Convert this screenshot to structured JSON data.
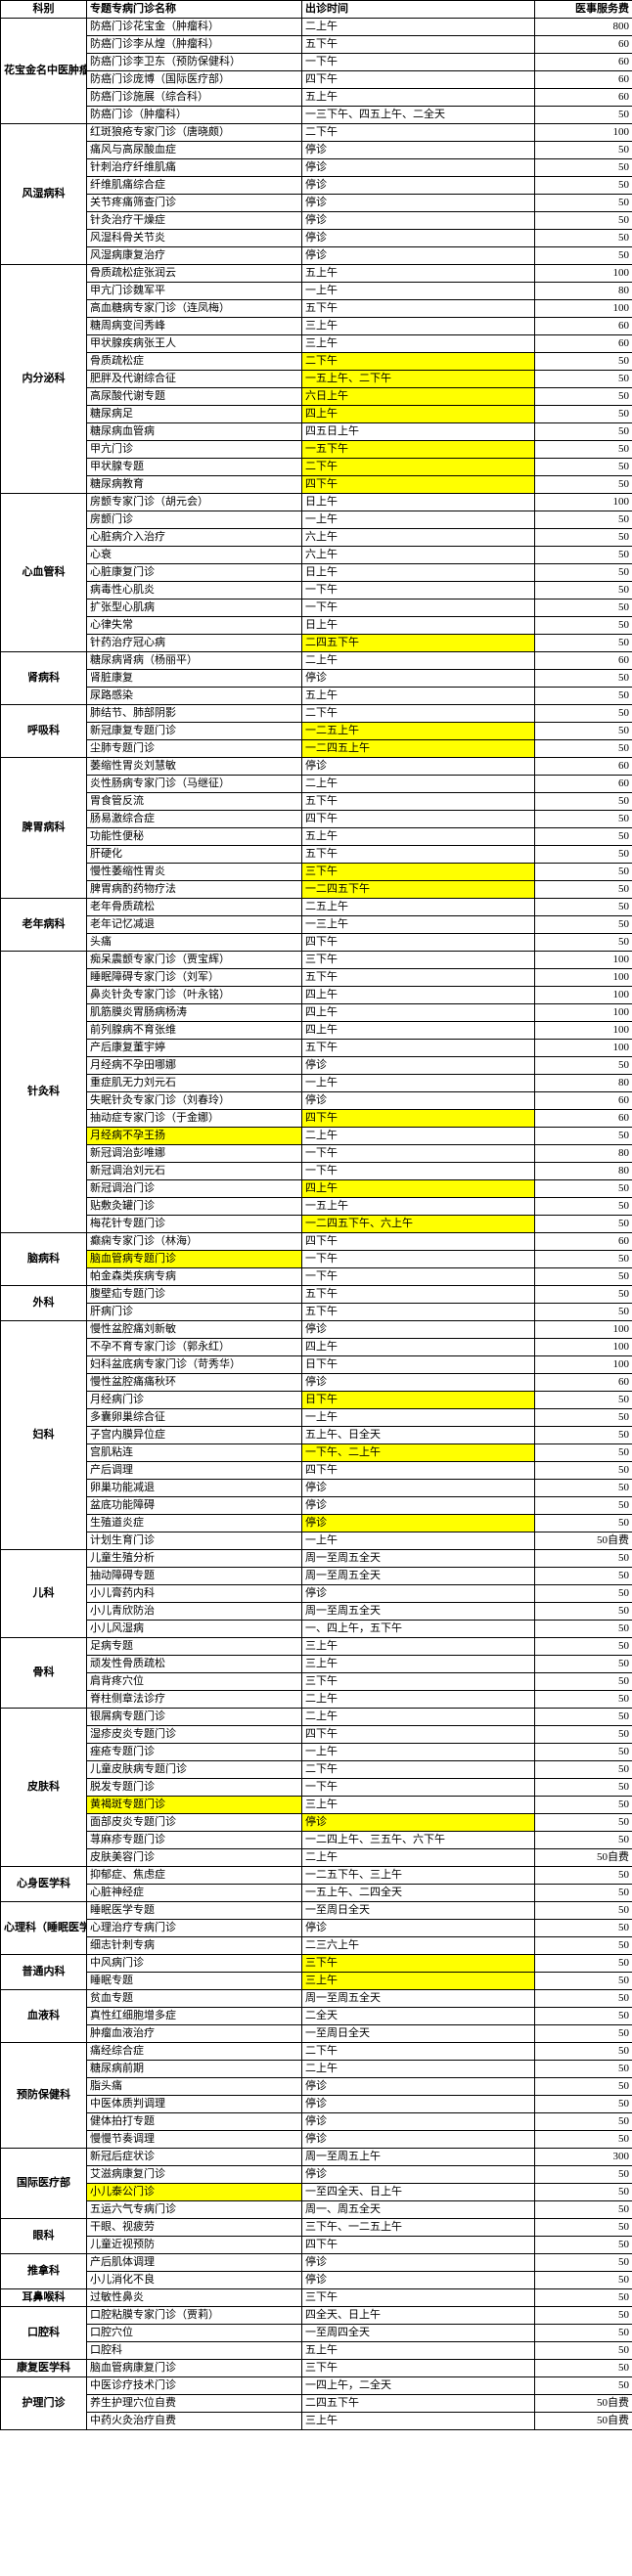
{
  "headers": [
    "科别",
    "专题专病门诊名称",
    "出诊时间",
    "医事服务费"
  ],
  "columns": [
    "dept",
    "name",
    "time",
    "fee"
  ],
  "highlight_color": "#ffff00",
  "rows": [
    {
      "dept": "花宝金名中医肿瘤预防团队",
      "name": "防癌门诊花宝金（肿瘤科）",
      "time": "二上午",
      "fee": "800"
    },
    {
      "dept": "",
      "name": "防癌门诊李从煌（肿瘤科）",
      "time": "五下午",
      "fee": "60"
    },
    {
      "dept": "",
      "name": "防癌门诊李卫东（预防保健科）",
      "time": "一下午",
      "fee": "60"
    },
    {
      "dept": "",
      "name": "防癌门诊庞博（国际医疗部）",
      "time": "四下午",
      "fee": "60"
    },
    {
      "dept": "",
      "name": "防癌门诊施展（综合科）",
      "time": "五上午",
      "fee": "60"
    },
    {
      "dept": "",
      "name": "防癌门诊（肿瘤科）",
      "time": "一三下午、四五上午、二全天",
      "fee": "50"
    },
    {
      "dept": "风湿病科",
      "name": "红斑狼疮专家门诊（唐晓颇）",
      "time": "二下午",
      "fee": "100"
    },
    {
      "dept": "",
      "name": "痛风与高尿酸血症",
      "time": "停诊",
      "fee": "50"
    },
    {
      "dept": "",
      "name": "针刺治疗纤维肌痛",
      "time": "停诊",
      "fee": "50"
    },
    {
      "dept": "",
      "name": "纤维肌痛综合症",
      "time": "停诊",
      "fee": "50"
    },
    {
      "dept": "",
      "name": "关节疼痛筛查门诊",
      "time": "停诊",
      "fee": "50"
    },
    {
      "dept": "",
      "name": "针灸治疗干燥症",
      "time": "停诊",
      "fee": "50"
    },
    {
      "dept": "",
      "name": "风湿科骨关节炎",
      "time": "停诊",
      "fee": "50"
    },
    {
      "dept": "",
      "name": "风湿病康复治疗",
      "time": "停诊",
      "fee": "50"
    },
    {
      "dept": "内分泌科",
      "name": "骨质疏松症张润云",
      "time": "五上午",
      "fee": "100"
    },
    {
      "dept": "",
      "name": "甲亢门诊魏军平",
      "time": "一上午",
      "fee": "80"
    },
    {
      "dept": "",
      "name": "高血糖病专家门诊（连凤梅）",
      "time": "五下午",
      "fee": "100"
    },
    {
      "dept": "",
      "name": "糖周病变闫秀峰",
      "time": "三上午",
      "fee": "60"
    },
    {
      "dept": "",
      "name": "甲状腺疾病张王人",
      "time": "三上午",
      "fee": "60"
    },
    {
      "dept": "",
      "name": "骨质疏松症",
      "time": "二下午",
      "fee": "50",
      "hl": [
        "time"
      ]
    },
    {
      "dept": "",
      "name": "肥胖及代谢综合征",
      "time": "一五上午、二下午",
      "fee": "50",
      "hl": [
        "time"
      ]
    },
    {
      "dept": "",
      "name": "高尿酸代谢专题",
      "time": "六日上午",
      "fee": "50",
      "hl": [
        "time"
      ]
    },
    {
      "dept": "",
      "name": "糖尿病足",
      "time": "四上午",
      "fee": "50",
      "hl": [
        "time"
      ]
    },
    {
      "dept": "",
      "name": "糖尿病血管病",
      "time": "四五日上午",
      "fee": "50"
    },
    {
      "dept": "",
      "name": "甲亢门诊",
      "time": "一五下午",
      "fee": "50",
      "hl": [
        "time"
      ]
    },
    {
      "dept": "",
      "name": "甲状腺专题",
      "time": "二下午",
      "fee": "50",
      "hl": [
        "time"
      ]
    },
    {
      "dept": "",
      "name": "糖尿病教育",
      "time": "四下午",
      "fee": "50",
      "hl": [
        "time"
      ]
    },
    {
      "dept": "心血管科",
      "name": "房颤专家门诊（胡元会）",
      "time": "日上午",
      "fee": "100"
    },
    {
      "dept": "",
      "name": "房颤门诊",
      "time": "一上午",
      "fee": "50"
    },
    {
      "dept": "",
      "name": "心脏病介入治疗",
      "time": "六上午",
      "fee": "50"
    },
    {
      "dept": "",
      "name": "心衰",
      "time": "六上午",
      "fee": "50"
    },
    {
      "dept": "",
      "name": "心脏康复门诊",
      "time": "日上午",
      "fee": "50"
    },
    {
      "dept": "",
      "name": "病毒性心肌炎",
      "time": "一下午",
      "fee": "50"
    },
    {
      "dept": "",
      "name": "扩张型心肌病",
      "time": "一下午",
      "fee": "50"
    },
    {
      "dept": "",
      "name": "心律失常",
      "time": "日上午",
      "fee": "50"
    },
    {
      "dept": "",
      "name": "针药治疗冠心病",
      "time": "二四五下午",
      "fee": "50",
      "hl": [
        "time"
      ]
    },
    {
      "dept": "肾病科",
      "name": "糖尿病肾病（杨丽平）",
      "time": "二上午",
      "fee": "60"
    },
    {
      "dept": "",
      "name": "肾脏康复",
      "time": "停诊",
      "fee": "50"
    },
    {
      "dept": "",
      "name": "尿路感染",
      "time": "五上午",
      "fee": "50"
    },
    {
      "dept": "呼吸科",
      "name": "肺结节、肺部阴影",
      "time": "二下午",
      "fee": "50"
    },
    {
      "dept": "",
      "name": "新冠康复专题门诊",
      "time": "一二五上午",
      "fee": "50",
      "hl": [
        "time"
      ]
    },
    {
      "dept": "",
      "name": "尘肺专题门诊",
      "time": "一二四五上午",
      "fee": "50",
      "hl": [
        "time"
      ]
    },
    {
      "dept": "脾胃病科",
      "name": "萎缩性胃炎刘慧敏",
      "time": "停诊",
      "fee": "60"
    },
    {
      "dept": "",
      "name": "炎性肠病专家门诊（马继征）",
      "time": "二上午",
      "fee": "60"
    },
    {
      "dept": "",
      "name": "胃食管反流",
      "time": "五下午",
      "fee": "50"
    },
    {
      "dept": "",
      "name": "肠易激综合症",
      "time": "四下午",
      "fee": "50"
    },
    {
      "dept": "",
      "name": "功能性便秘",
      "time": "五上午",
      "fee": "50"
    },
    {
      "dept": "",
      "name": "肝硬化",
      "time": "五下午",
      "fee": "50"
    },
    {
      "dept": "",
      "name": "慢性萎缩性胃炎",
      "time": "三下午",
      "fee": "50",
      "hl": [
        "time"
      ]
    },
    {
      "dept": "",
      "name": "脾胃病酌药物疗法",
      "time": "一二四五下午",
      "fee": "50",
      "hl": [
        "time"
      ]
    },
    {
      "dept": "老年病科",
      "name": "老年骨质疏松",
      "time": "二五上午",
      "fee": "50"
    },
    {
      "dept": "",
      "name": "老年记忆减退",
      "time": "一三上午",
      "fee": "50"
    },
    {
      "dept": "",
      "name": "头痛",
      "time": "四下午",
      "fee": "50"
    },
    {
      "dept": "针灸科",
      "name": "痴呆震颤专家门诊（贾宝辉）",
      "time": "三下午",
      "fee": "100"
    },
    {
      "dept": "",
      "name": "睡眠障碍专家门诊（刘军）",
      "time": "五下午",
      "fee": "100"
    },
    {
      "dept": "",
      "name": "鼻炎针灸专家门诊（叶永铭）",
      "time": "四上午",
      "fee": "100"
    },
    {
      "dept": "",
      "name": "肌筋膜炎胃肠病杨涛",
      "time": "四上午",
      "fee": "100"
    },
    {
      "dept": "",
      "name": "前列腺病不育张维",
      "time": "四上午",
      "fee": "100"
    },
    {
      "dept": "",
      "name": "产后康复董宇婷",
      "time": "五下午",
      "fee": "100"
    },
    {
      "dept": "",
      "name": "月经病不孕田哪娜",
      "time": "停诊",
      "fee": "50"
    },
    {
      "dept": "",
      "name": "重症肌无力刘元石",
      "time": "一上午",
      "fee": "80"
    },
    {
      "dept": "",
      "name": "失眠针灸专家门诊（刘春玲）",
      "time": "停诊",
      "fee": "60"
    },
    {
      "dept": "",
      "name": "抽动症专家门诊（于金娜）",
      "time": "四下午",
      "fee": "60",
      "hl": [
        "time"
      ]
    },
    {
      "dept": "",
      "name": "月经病不孕王扬",
      "time": "二上午",
      "fee": "50",
      "hl": [
        "name"
      ]
    },
    {
      "dept": "",
      "name": "新冠调治彭唯娜",
      "time": "一下午",
      "fee": "80"
    },
    {
      "dept": "",
      "name": "新冠调治刘元石",
      "time": "一下午",
      "fee": "80"
    },
    {
      "dept": "",
      "name": "新冠调治门诊",
      "time": "四上午",
      "fee": "50",
      "hl": [
        "time"
      ]
    },
    {
      "dept": "",
      "name": "贴敷灸罐门诊",
      "time": "一五上午",
      "fee": "50"
    },
    {
      "dept": "",
      "name": "梅花针专题门诊",
      "time": "一二四五下午、六上午",
      "fee": "50",
      "hl": [
        "time"
      ]
    },
    {
      "dept": "脑病科",
      "name": "癫痫专家门诊（林海）",
      "time": "四下午",
      "fee": "60"
    },
    {
      "dept": "",
      "name": "脑血管病专题门诊",
      "time": "一下午",
      "fee": "50",
      "hl": [
        "name"
      ]
    },
    {
      "dept": "",
      "name": "帕金森类疾病专病",
      "time": "一下午",
      "fee": "50"
    },
    {
      "dept": "外科",
      "name": "腹壁疝专题门诊",
      "time": "五下午",
      "fee": "50"
    },
    {
      "dept": "",
      "name": "肝病门诊",
      "time": "五下午",
      "fee": "50"
    },
    {
      "dept": "妇科",
      "name": "慢性盆腔痛刘新敏",
      "time": "停诊",
      "fee": "100"
    },
    {
      "dept": "",
      "name": "不孕不育专家门诊（郭永红）",
      "time": "四上午",
      "fee": "100"
    },
    {
      "dept": "",
      "name": "妇科盆底病专家门诊（苛秀华）",
      "time": "日下午",
      "fee": "100"
    },
    {
      "dept": "",
      "name": "慢性盆腔痛痛秋环",
      "time": "停诊",
      "fee": "60"
    },
    {
      "dept": "",
      "name": "月经病门诊",
      "time": "日下午",
      "fee": "50",
      "hl": [
        "time"
      ]
    },
    {
      "dept": "",
      "name": "多囊卵巢综合征",
      "time": "一上午",
      "fee": "50"
    },
    {
      "dept": "",
      "name": "子宫内膜异位症",
      "time": "五上午、日全天",
      "fee": "50"
    },
    {
      "dept": "",
      "name": "宫肌粘连",
      "time": "一下午、二上午",
      "fee": "50",
      "hl": [
        "time"
      ]
    },
    {
      "dept": "",
      "name": "产后调理",
      "time": "四下午",
      "fee": "50"
    },
    {
      "dept": "",
      "name": "卵巢功能减退",
      "time": "停诊",
      "fee": "50"
    },
    {
      "dept": "",
      "name": "盆底功能障碍",
      "time": "停诊",
      "fee": "50"
    },
    {
      "dept": "",
      "name": "生殖道炎症",
      "time": "停诊",
      "fee": "50",
      "hl": [
        "time"
      ]
    },
    {
      "dept": "",
      "name": "计划生育门诊",
      "time": "一上午",
      "fee": "50自费"
    },
    {
      "dept": "儿科",
      "name": "儿童生殖分析",
      "time": "周一至周五全天",
      "fee": "50"
    },
    {
      "dept": "",
      "name": "抽动障碍专题",
      "time": "周一至周五全天",
      "fee": "50"
    },
    {
      "dept": "",
      "name": "小儿膏药内科",
      "time": "停诊",
      "fee": "50"
    },
    {
      "dept": "",
      "name": "小儿青欣防治",
      "time": "周一至周五全天",
      "fee": "50"
    },
    {
      "dept": "",
      "name": "小儿风湿病",
      "time": "一、四上午，五下午",
      "fee": "50"
    },
    {
      "dept": "骨科",
      "name": "足病专题",
      "time": "三上午",
      "fee": "50"
    },
    {
      "dept": "",
      "name": "顽发性骨质疏松",
      "time": "三上午",
      "fee": "50"
    },
    {
      "dept": "",
      "name": "肩背疼穴位",
      "time": "三下午",
      "fee": "50"
    },
    {
      "dept": "",
      "name": "脊柱侧章法诊疗",
      "time": "二上午",
      "fee": "50"
    },
    {
      "dept": "皮肤科",
      "name": "银屑病专题门诊",
      "time": "二上午",
      "fee": "50"
    },
    {
      "dept": "",
      "name": "湿疹皮炎专题门诊",
      "time": "四下午",
      "fee": "50"
    },
    {
      "dept": "",
      "name": "痤疮专题门诊",
      "time": "一上午",
      "fee": "50"
    },
    {
      "dept": "",
      "name": "儿童皮肤病专题门诊",
      "time": "二下午",
      "fee": "50"
    },
    {
      "dept": "",
      "name": "脱发专题门诊",
      "time": "一下午",
      "fee": "50"
    },
    {
      "dept": "",
      "name": "黄褐斑专题门诊",
      "time": "三上午",
      "fee": "50",
      "hl": [
        "name"
      ]
    },
    {
      "dept": "",
      "name": "面部皮炎专题门诊",
      "time": "停诊",
      "fee": "50",
      "hl": [
        "time"
      ]
    },
    {
      "dept": "",
      "name": "荨麻疹专题门诊",
      "time": "一二四上午、三五午、六下午",
      "fee": "50"
    },
    {
      "dept": "",
      "name": "皮肤美容门诊",
      "time": "二上午",
      "fee": "50自费"
    },
    {
      "dept": "心身医学科",
      "name": "抑郁症、焦虑症",
      "time": "一二五下午、三上午",
      "fee": "50"
    },
    {
      "dept": "",
      "name": "心脏神经症",
      "time": "一五上午、二四全天",
      "fee": "50"
    },
    {
      "dept": "心理科（睡眠医学门诊）",
      "name": "睡眠医学专题",
      "time": "一至周日全天",
      "fee": "50"
    },
    {
      "dept": "",
      "name": "心理治疗专病门诊",
      "time": "停诊",
      "fee": "50"
    },
    {
      "dept": "",
      "name": "细志针刺专病",
      "time": "二三六上午",
      "fee": "50"
    },
    {
      "dept": "普通内科",
      "name": "中风病门诊",
      "time": "三下午",
      "fee": "50",
      "hl": [
        "time"
      ]
    },
    {
      "dept": "",
      "name": "睡眠专题",
      "time": "三上午",
      "fee": "50",
      "hl": [
        "time"
      ]
    },
    {
      "dept": "血液科",
      "name": "贫血专题",
      "time": "周一至周五全天",
      "fee": "50"
    },
    {
      "dept": "",
      "name": "真性红细胞增多症",
      "time": "二全天",
      "fee": "50"
    },
    {
      "dept": "",
      "name": "肿瘤血液治疗",
      "time": "一至周日全天",
      "fee": "50"
    },
    {
      "dept": "预防保健科",
      "name": "痛经综合症",
      "time": "二下午",
      "fee": "50"
    },
    {
      "dept": "",
      "name": "糖尿病前期",
      "time": "二上午",
      "fee": "50"
    },
    {
      "dept": "",
      "name": "脂头痛",
      "time": "停诊",
      "fee": "50"
    },
    {
      "dept": "",
      "name": "中医体质判调理",
      "time": "停诊",
      "fee": "50"
    },
    {
      "dept": "",
      "name": "健体拍打专题",
      "time": "停诊",
      "fee": "50"
    },
    {
      "dept": "",
      "name": "慢慢节奏调理",
      "time": "停诊",
      "fee": "50"
    },
    {
      "dept": "国际医疗部",
      "name": "新冠后症状诊",
      "time": "周一至周五上午",
      "fee": "300"
    },
    {
      "dept": "",
      "name": "艾滋病康复门诊",
      "time": "停诊",
      "fee": "50"
    },
    {
      "dept": "",
      "name": "小儿泰公门诊",
      "time": "一至四全天、日上午",
      "fee": "50",
      "hl": [
        "name"
      ]
    },
    {
      "dept": "",
      "name": "五运六气专病门诊",
      "time": "周一、周五全天",
      "fee": "50"
    },
    {
      "dept": "眼科",
      "name": "干眼、视疲劳",
      "time": "三下午、一二五上午",
      "fee": "50"
    },
    {
      "dept": "",
      "name": "儿童近视预防",
      "time": "四下午",
      "fee": "50"
    },
    {
      "dept": "推拿科",
      "name": "产后肌体调理",
      "time": "停诊",
      "fee": "50"
    },
    {
      "dept": "",
      "name": "小儿消化不良",
      "time": "停诊",
      "fee": "50"
    },
    {
      "dept": "耳鼻喉科",
      "name": "过敏性鼻炎",
      "time": "三下午",
      "fee": "50"
    },
    {
      "dept": "口腔科",
      "name": "口腔粘膜专家门诊（贾莉）",
      "time": "四全天、日上午",
      "fee": "50"
    },
    {
      "dept": "",
      "name": "口腔穴位",
      "time": "一至周四全天",
      "fee": "50"
    },
    {
      "dept": "",
      "name": "口腔科",
      "time": "五上午",
      "fee": "50"
    },
    {
      "dept": "康复医学科",
      "name": "脑血管病康复门诊",
      "time": "三下午",
      "fee": "50"
    },
    {
      "dept": "护理门诊",
      "name": "中医诊疗技术门诊",
      "time": "一四上午，二全天",
      "fee": "50"
    },
    {
      "dept": "",
      "name": "养生护理穴位自费",
      "time": "二四五下午",
      "fee": "50自费"
    },
    {
      "dept": "",
      "name": "中药火灸治疗自费",
      "time": "三上午",
      "fee": "50自费"
    }
  ]
}
